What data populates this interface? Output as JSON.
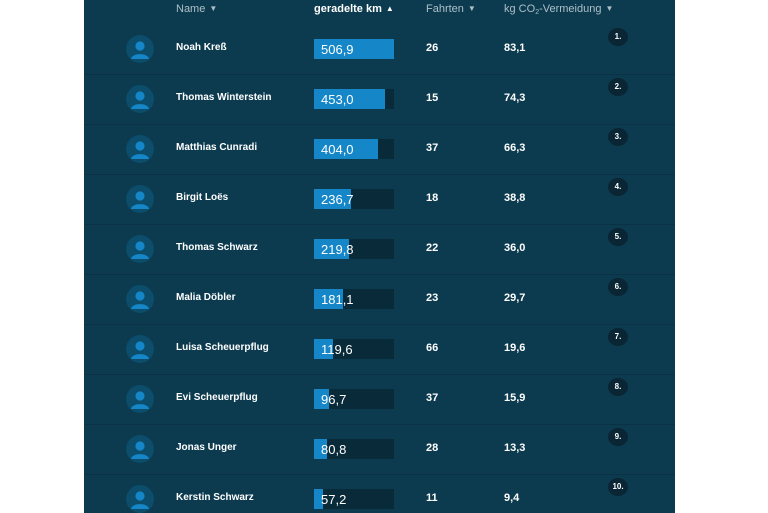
{
  "header": {
    "name": "Name",
    "km": "geradelte km",
    "trips": "Fahrten",
    "co2_prefix": "kg CO",
    "co2_sub": "2",
    "co2_suffix": "-Vermeidung",
    "caret_down": "▼",
    "caret_up": "▲"
  },
  "colors": {
    "panel": "#0c3b4f",
    "bar_fill": "#1587c9",
    "bar_track": "#092a38",
    "avatar_bg": "#0b4d6b",
    "avatar_fg": "#1587c9"
  },
  "icons": {
    "avatar": "user-avatar-icon"
  },
  "bar_max_km": 506.9,
  "rows": [
    {
      "rank": "1.",
      "name": "Noah Kreß",
      "km": "506,9",
      "km_value": 506.9,
      "trips": "26",
      "co2": "83,1"
    },
    {
      "rank": "2.",
      "name": "Thomas Winterstein",
      "km": "453,0",
      "km_value": 453.0,
      "trips": "15",
      "co2": "74,3"
    },
    {
      "rank": "3.",
      "name": "Matthias Cunradi",
      "km": "404,0",
      "km_value": 404.0,
      "trips": "37",
      "co2": "66,3"
    },
    {
      "rank": "4.",
      "name": "Birgit Loës",
      "km": "236,7",
      "km_value": 236.7,
      "trips": "18",
      "co2": "38,8"
    },
    {
      "rank": "5.",
      "name": "Thomas Schwarz",
      "km": "219,8",
      "km_value": 219.8,
      "trips": "22",
      "co2": "36,0"
    },
    {
      "rank": "6.",
      "name": "Malia Döbler",
      "km": "181,1",
      "km_value": 181.1,
      "trips": "23",
      "co2": "29,7"
    },
    {
      "rank": "7.",
      "name": "Luisa Scheuerpflug",
      "km": "119,6",
      "km_value": 119.6,
      "trips": "66",
      "co2": "19,6"
    },
    {
      "rank": "8.",
      "name": "Evi Scheuerpflug",
      "km": "96,7",
      "km_value": 96.7,
      "trips": "37",
      "co2": "15,9"
    },
    {
      "rank": "9.",
      "name": "Jonas Unger",
      "km": "80,8",
      "km_value": 80.8,
      "trips": "28",
      "co2": "13,3"
    },
    {
      "rank": "10.",
      "name": "Kerstin Schwarz",
      "km": "57,2",
      "km_value": 57.2,
      "trips": "11",
      "co2": "9,4"
    }
  ]
}
